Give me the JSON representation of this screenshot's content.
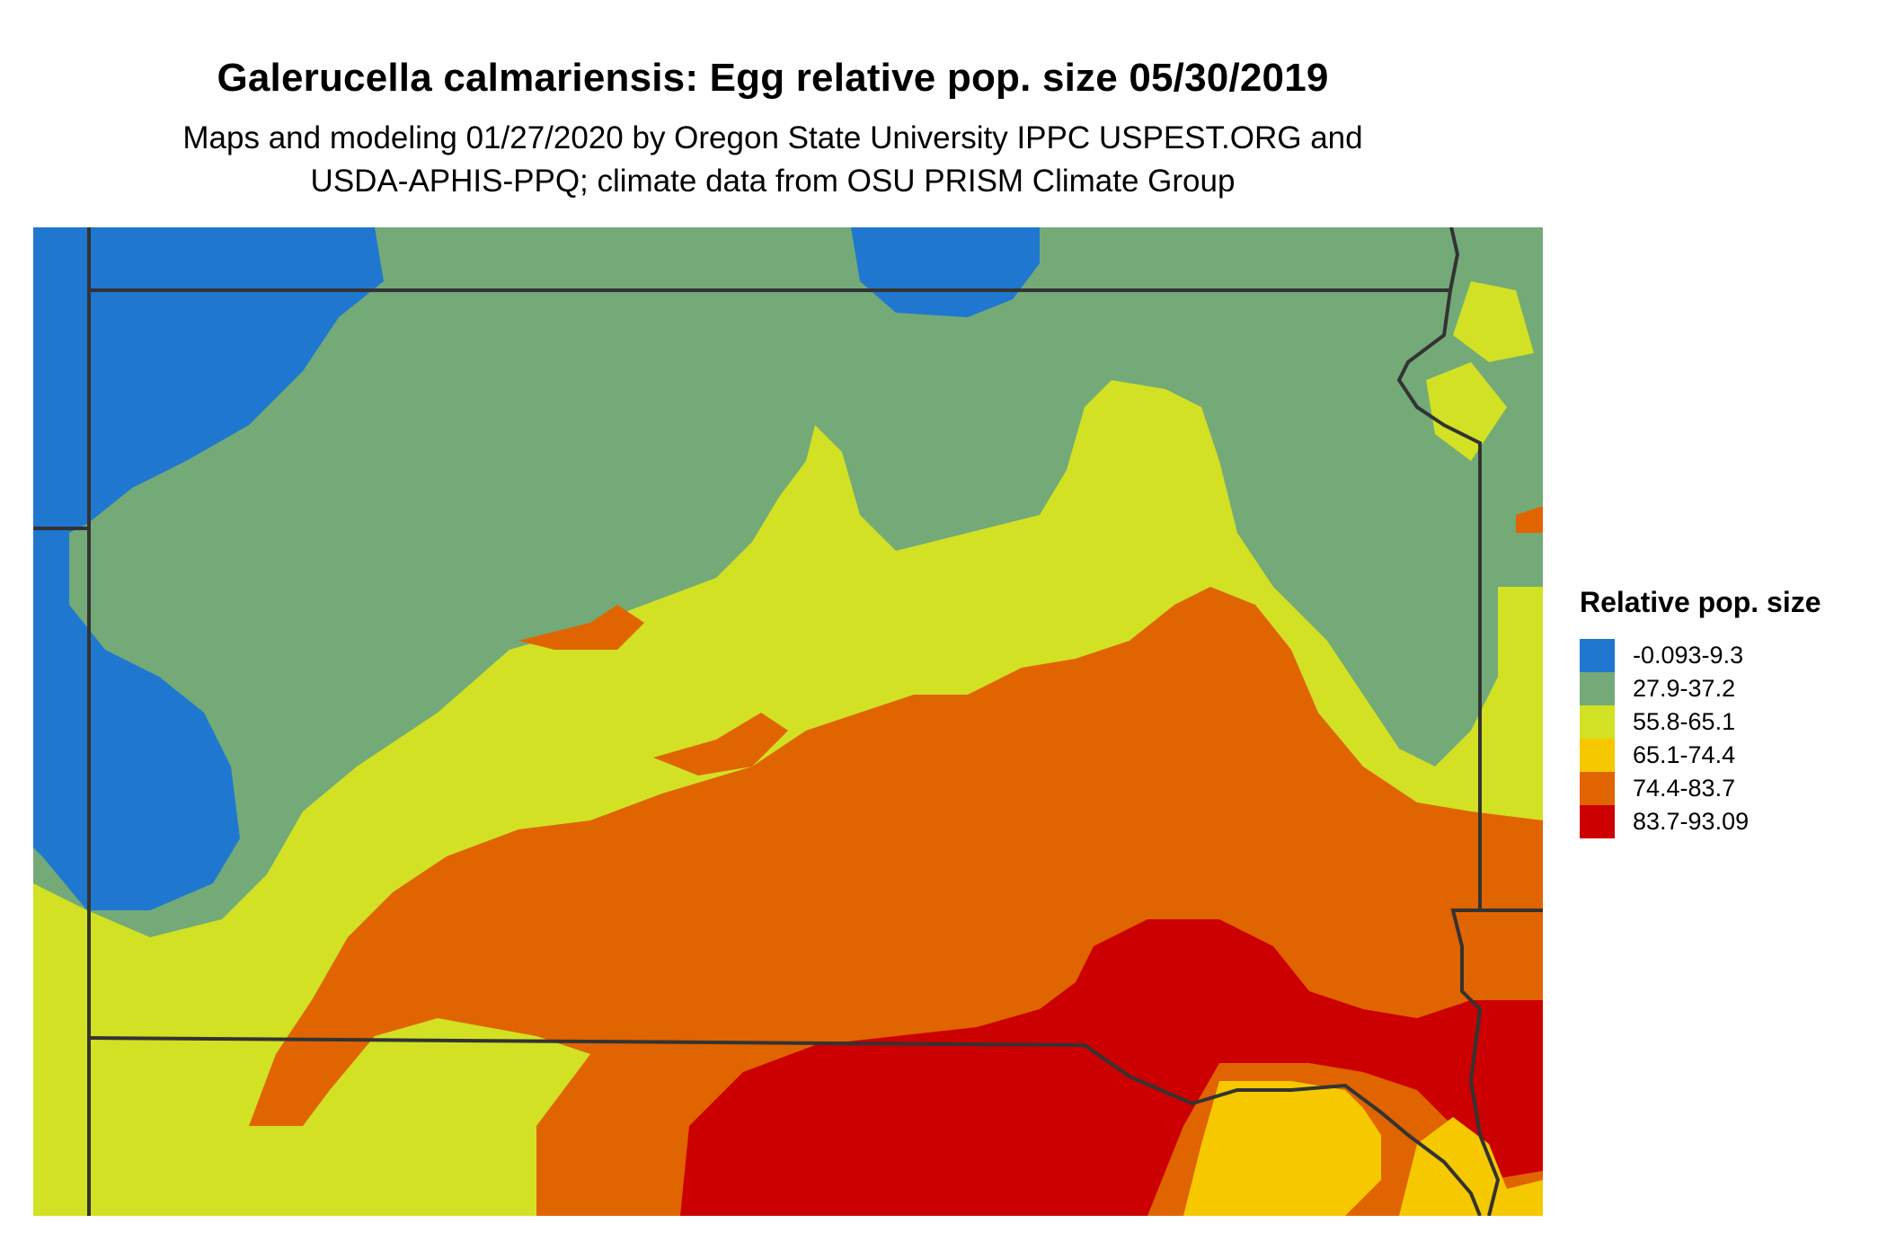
{
  "title": "Galerucella calmariensis: Egg relative pop. size 05/30/2019",
  "subtitle": {
    "line1": "Maps and modeling 01/27/2020 by Oregon State University IPPC USPEST.ORG and",
    "line2": "USDA-APHIS-PPQ; climate data from OSU PRISM Climate Group"
  },
  "legend": {
    "title": "Relative pop. size",
    "items": [
      {
        "label": "-0.093-9.3",
        "color": "#1f77d0"
      },
      {
        "label": "27.9-37.2",
        "color": "#73aa78"
      },
      {
        "label": "55.8-65.1",
        "color": "#d2e124"
      },
      {
        "label": "65.1-74.4",
        "color": "#f5c800"
      },
      {
        "label": "74.4-83.7",
        "color": "#e06400"
      },
      {
        "label": "83.7-93.09",
        "color": "#cc0000"
      }
    ]
  },
  "map": {
    "background_color": "#73aa78",
    "border_color": "#333333"
  }
}
